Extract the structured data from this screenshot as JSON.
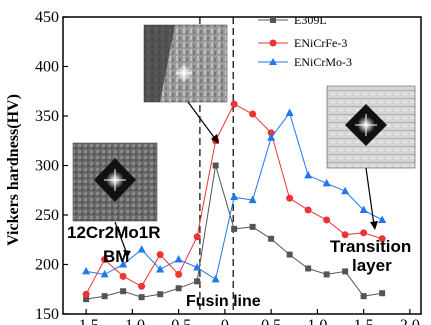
{
  "chart_data": {
    "type": "line",
    "ylabel": "Vickers hardness(HV)",
    "xlabel": "",
    "xlim": [
      -1.75,
      2.12
    ],
    "ylim": [
      150,
      450
    ],
    "x_ticks": [
      -1.5,
      -1.0,
      -0.5,
      0.0,
      0.5,
      1.0,
      1.5,
      2.0
    ],
    "x_tick_labels": [
      "-1.5",
      "-1.0",
      "-0.5",
      "0",
      "0.5",
      "1.0",
      "1.5",
      "2.0"
    ],
    "y_ticks": [
      150,
      200,
      250,
      300,
      350,
      400,
      450
    ],
    "y_tick_labels": [
      "150",
      "200",
      "250",
      "300",
      "350",
      "400",
      "450"
    ],
    "legend_position": "top-right",
    "series": [
      {
        "name": "E309L",
        "color": "#555555",
        "marker": "square",
        "x": [
          -1.5,
          -1.3,
          -1.1,
          -0.9,
          -0.7,
          -0.5,
          -0.3,
          -0.1,
          0.1,
          0.3,
          0.5,
          0.7,
          0.9,
          1.1,
          1.3,
          1.5,
          1.7
        ],
        "y": [
          165,
          168,
          173,
          167,
          170,
          176,
          183,
          300,
          236,
          238,
          226,
          210,
          196,
          190,
          193,
          168,
          171
        ]
      },
      {
        "name": "ENiCrFe-3",
        "color": "#ee3333",
        "marker": "circle",
        "x": [
          -1.5,
          -1.3,
          -1.1,
          -0.9,
          -0.7,
          -0.5,
          -0.3,
          -0.1,
          0.1,
          0.3,
          0.5,
          0.7,
          0.9,
          1.1,
          1.3,
          1.5,
          1.7
        ],
        "y": [
          170,
          205,
          188,
          178,
          210,
          190,
          228,
          325,
          362,
          352,
          333,
          267,
          255,
          245,
          230,
          232,
          226
        ]
      },
      {
        "name": "ENiCrMo-3",
        "color": "#2277ee",
        "marker": "triangle",
        "x": [
          -1.5,
          -1.3,
          -1.1,
          -0.9,
          -0.7,
          -0.5,
          -0.3,
          -0.1,
          0.1,
          0.3,
          0.5,
          0.7,
          0.9,
          1.1,
          1.3,
          1.5,
          1.7
        ],
        "y": [
          193,
          190,
          200,
          215,
          195,
          205,
          197,
          185,
          268,
          265,
          328,
          353,
          290,
          282,
          274,
          255,
          245
        ]
      }
    ],
    "vlines_x": [
      -0.27,
      0.09
    ],
    "annotations": [
      {
        "text": "12Cr2Mo1R"
      },
      {
        "text": "BM"
      },
      {
        "text": "Fusin line"
      },
      {
        "text": "Transition"
      },
      {
        "text": "layer"
      }
    ],
    "micrographs": [
      {
        "name": "bm-micrograph"
      },
      {
        "name": "fusion-line-micrograph"
      },
      {
        "name": "transition-layer-micrograph"
      }
    ]
  }
}
